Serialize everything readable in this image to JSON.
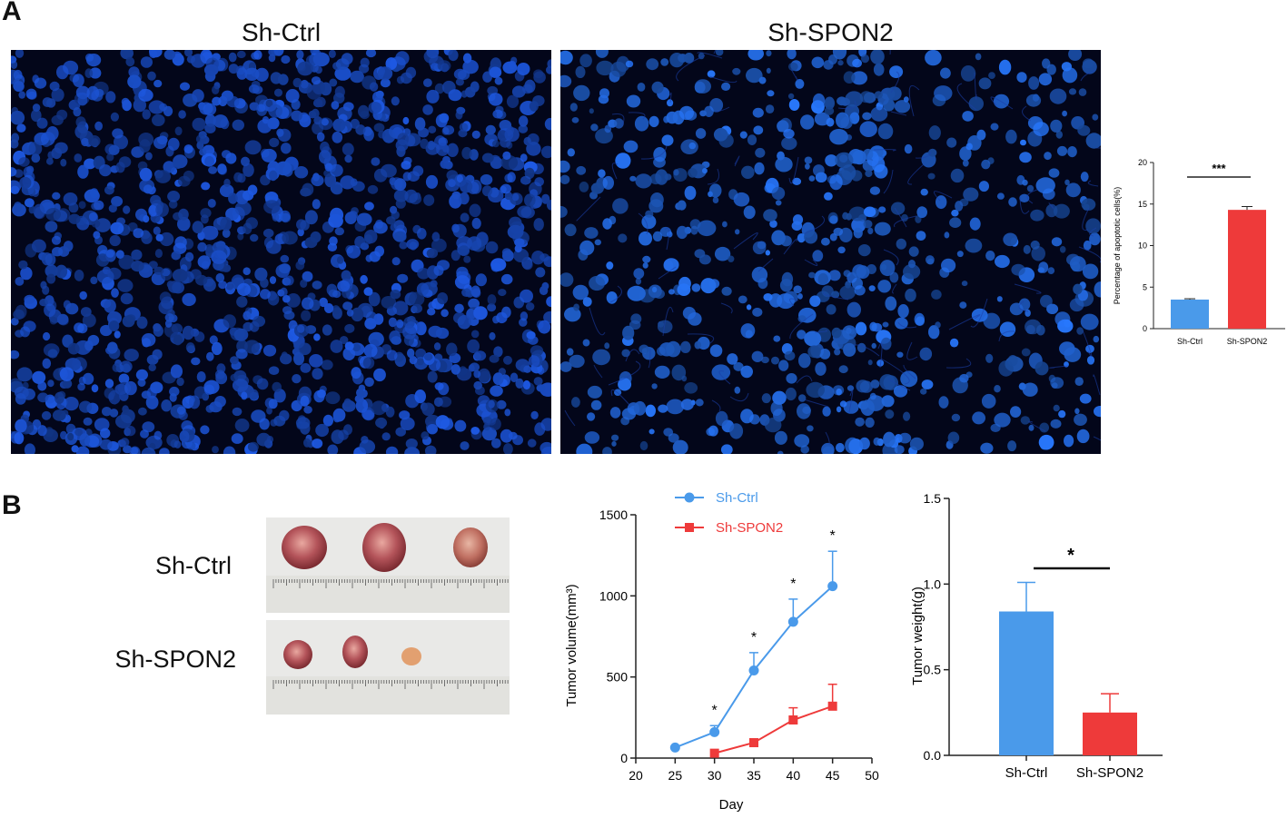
{
  "panel_a": {
    "letter": "A",
    "image_titles": [
      "Sh-Ctrl",
      "Sh-SPON2"
    ]
  },
  "panel_b": {
    "letter": "B",
    "photo_labels": [
      "Sh-Ctrl",
      "Sh-SPON2"
    ]
  },
  "colors": {
    "ctrl": "#4a9aea",
    "spon2": "#ee3a3a",
    "micro_bg": "#03061a",
    "nuclei": "#2a6fff"
  },
  "chart_data": [
    {
      "id": "apoptosis",
      "type": "bar",
      "ylabel": "Percentage of apoptotic cells(%)",
      "categories": [
        "Sh-Ctrl",
        "Sh-SPON2"
      ],
      "values": [
        3.5,
        14.3
      ],
      "errors": [
        0.1,
        0.4
      ],
      "ylim": [
        0,
        20
      ],
      "yticks": [
        0,
        5,
        10,
        15,
        20
      ],
      "significance": "***"
    },
    {
      "id": "tumor-volume",
      "type": "line",
      "xlabel": "Day",
      "ylabel": "Tumor volume(mm³)",
      "xlim": [
        20,
        50
      ],
      "xticks": [
        20,
        25,
        30,
        35,
        40,
        45,
        50
      ],
      "ylim": [
        0,
        1500
      ],
      "yticks": [
        0,
        500,
        1000,
        1500
      ],
      "series": [
        {
          "name": "Sh-Ctrl",
          "x": [
            25,
            30,
            35,
            40,
            45
          ],
          "y": [
            65,
            160,
            540,
            840,
            1060
          ],
          "err": [
            0,
            40,
            110,
            140,
            215
          ]
        },
        {
          "name": "Sh-SPON2",
          "x": [
            30,
            35,
            40,
            45
          ],
          "y": [
            30,
            95,
            235,
            320
          ],
          "err": [
            0,
            0,
            75,
            135
          ]
        }
      ],
      "annotations": [
        {
          "x": 30,
          "text": "*"
        },
        {
          "x": 35,
          "text": "*"
        },
        {
          "x": 40,
          "text": "*"
        },
        {
          "x": 45,
          "text": "*"
        }
      ],
      "legend": "top-left"
    },
    {
      "id": "tumor-weight",
      "type": "bar",
      "ylabel": "Tumor weight(g)",
      "categories": [
        "Sh-Ctrl",
        "Sh-SPON2"
      ],
      "values": [
        0.84,
        0.25
      ],
      "errors": [
        0.17,
        0.11
      ],
      "ylim": [
        0,
        1.5
      ],
      "yticks": [
        "0.0",
        "0.5",
        "1.0",
        "1.5"
      ],
      "significance": "*"
    }
  ]
}
